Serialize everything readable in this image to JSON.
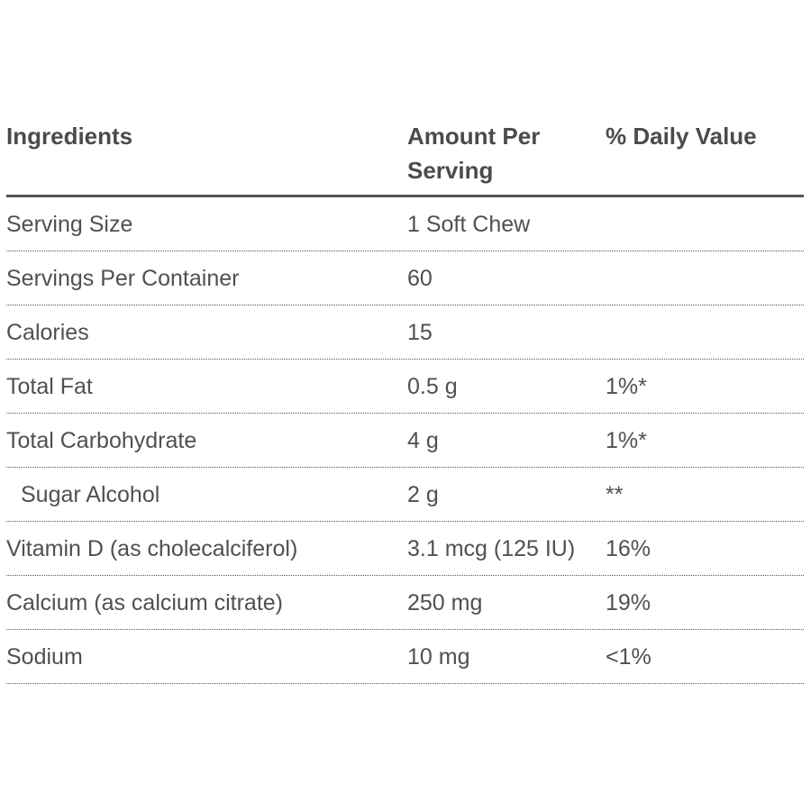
{
  "header": {
    "ingredients": "Ingredients",
    "amount": "Amount Per Serving",
    "daily_value": "% Daily Value"
  },
  "rows": [
    {
      "name": "Serving Size",
      "amount": "1 Soft Chew",
      "dv": ""
    },
    {
      "name": "Servings Per Container",
      "amount": "60",
      "dv": ""
    },
    {
      "name": "Calories",
      "amount": "15",
      "dv": ""
    },
    {
      "name": "Total Fat",
      "amount": "0.5 g",
      "dv": "1%*"
    },
    {
      "name": "Total Carbohydrate",
      "amount": "4 g",
      "dv": "1%*"
    },
    {
      "name": "Sugar Alcohol",
      "amount": "2 g",
      "dv": "**"
    },
    {
      "name": "Vitamin D (as cholecalciferol)",
      "amount": "3.1 mcg (125 IU)",
      "dv": "16%"
    },
    {
      "name": "Calcium (as calcium citrate)",
      "amount": "250 mg",
      "dv": "19%"
    },
    {
      "name": "Sodium",
      "amount": "10 mg",
      "dv": "<1%"
    }
  ]
}
